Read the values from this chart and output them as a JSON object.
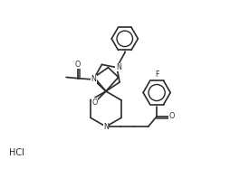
{
  "background_color": "#ffffff",
  "line_color": "#2a2a2a",
  "line_width": 1.2,
  "figsize": [
    2.54,
    1.97
  ],
  "dpi": 100,
  "xlim": [
    0,
    10
  ],
  "ylim": [
    0,
    7.8
  ],
  "hcl_text": "HCl",
  "f_text": "F",
  "o_text": "O",
  "n_text": "N"
}
